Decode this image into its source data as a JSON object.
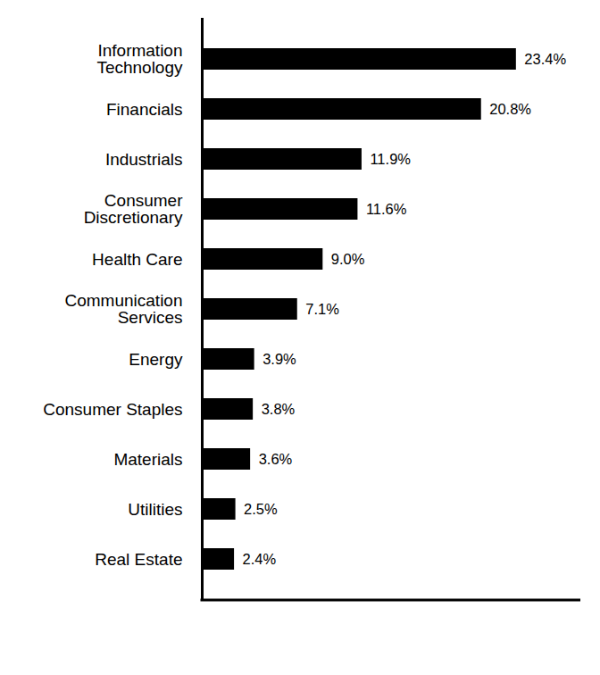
{
  "chart_data": {
    "type": "bar",
    "orientation": "horizontal",
    "categories": [
      "Information\nTechnology",
      "Financials",
      "Industrials",
      "Consumer\nDiscretionary",
      "Health Care",
      "Communication\nServices",
      "Energy",
      "Consumer Staples",
      "Materials",
      "Utilities",
      "Real Estate"
    ],
    "values": [
      23.4,
      20.8,
      11.9,
      11.6,
      9.0,
      7.1,
      3.9,
      3.8,
      3.6,
      2.5,
      2.4
    ],
    "value_labels": [
      "23.4%",
      "20.8%",
      "11.9%",
      "11.6%",
      "9.0%",
      "7.1%",
      "3.9%",
      "3.8%",
      "3.6%",
      "2.5%",
      "2.4%"
    ],
    "color": "#000000",
    "xlim": [
      0,
      28.2
    ],
    "xticks": [],
    "grid": false,
    "data_labels": true,
    "tick_labels": "y"
  }
}
